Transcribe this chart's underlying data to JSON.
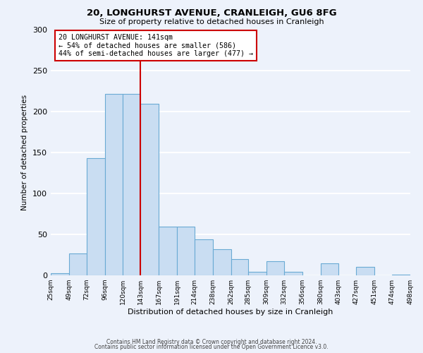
{
  "title": "20, LONGHURST AVENUE, CRANLEIGH, GU6 8FG",
  "subtitle": "Size of property relative to detached houses in Cranleigh",
  "xlabel": "Distribution of detached houses by size in Cranleigh",
  "ylabel": "Number of detached properties",
  "bin_edges": [
    25,
    49,
    72,
    96,
    120,
    143,
    167,
    191,
    214,
    238,
    262,
    285,
    309,
    332,
    356,
    380,
    403,
    427,
    451,
    474,
    498
  ],
  "bar_heights": [
    3,
    27,
    143,
    222,
    222,
    210,
    60,
    60,
    44,
    32,
    20,
    4,
    17,
    4,
    0,
    15,
    0,
    10,
    0,
    1
  ],
  "bar_color": "#c9ddf2",
  "bar_edge_color": "#6aaad4",
  "vline_x": 143,
  "vline_color": "#cc0000",
  "annotation_text": "20 LONGHURST AVENUE: 141sqm\n← 54% of detached houses are smaller (586)\n44% of semi-detached houses are larger (477) →",
  "annotation_box_color": "#cc0000",
  "ylim": [
    0,
    300
  ],
  "yticks": [
    0,
    50,
    100,
    150,
    200,
    250,
    300
  ],
  "footer1": "Contains HM Land Registry data © Crown copyright and database right 2024.",
  "footer2": "Contains public sector information licensed under the Open Government Licence v3.0.",
  "background_color": "#edf2fb",
  "plot_bg_color": "#edf2fb",
  "grid_color": "#ffffff"
}
